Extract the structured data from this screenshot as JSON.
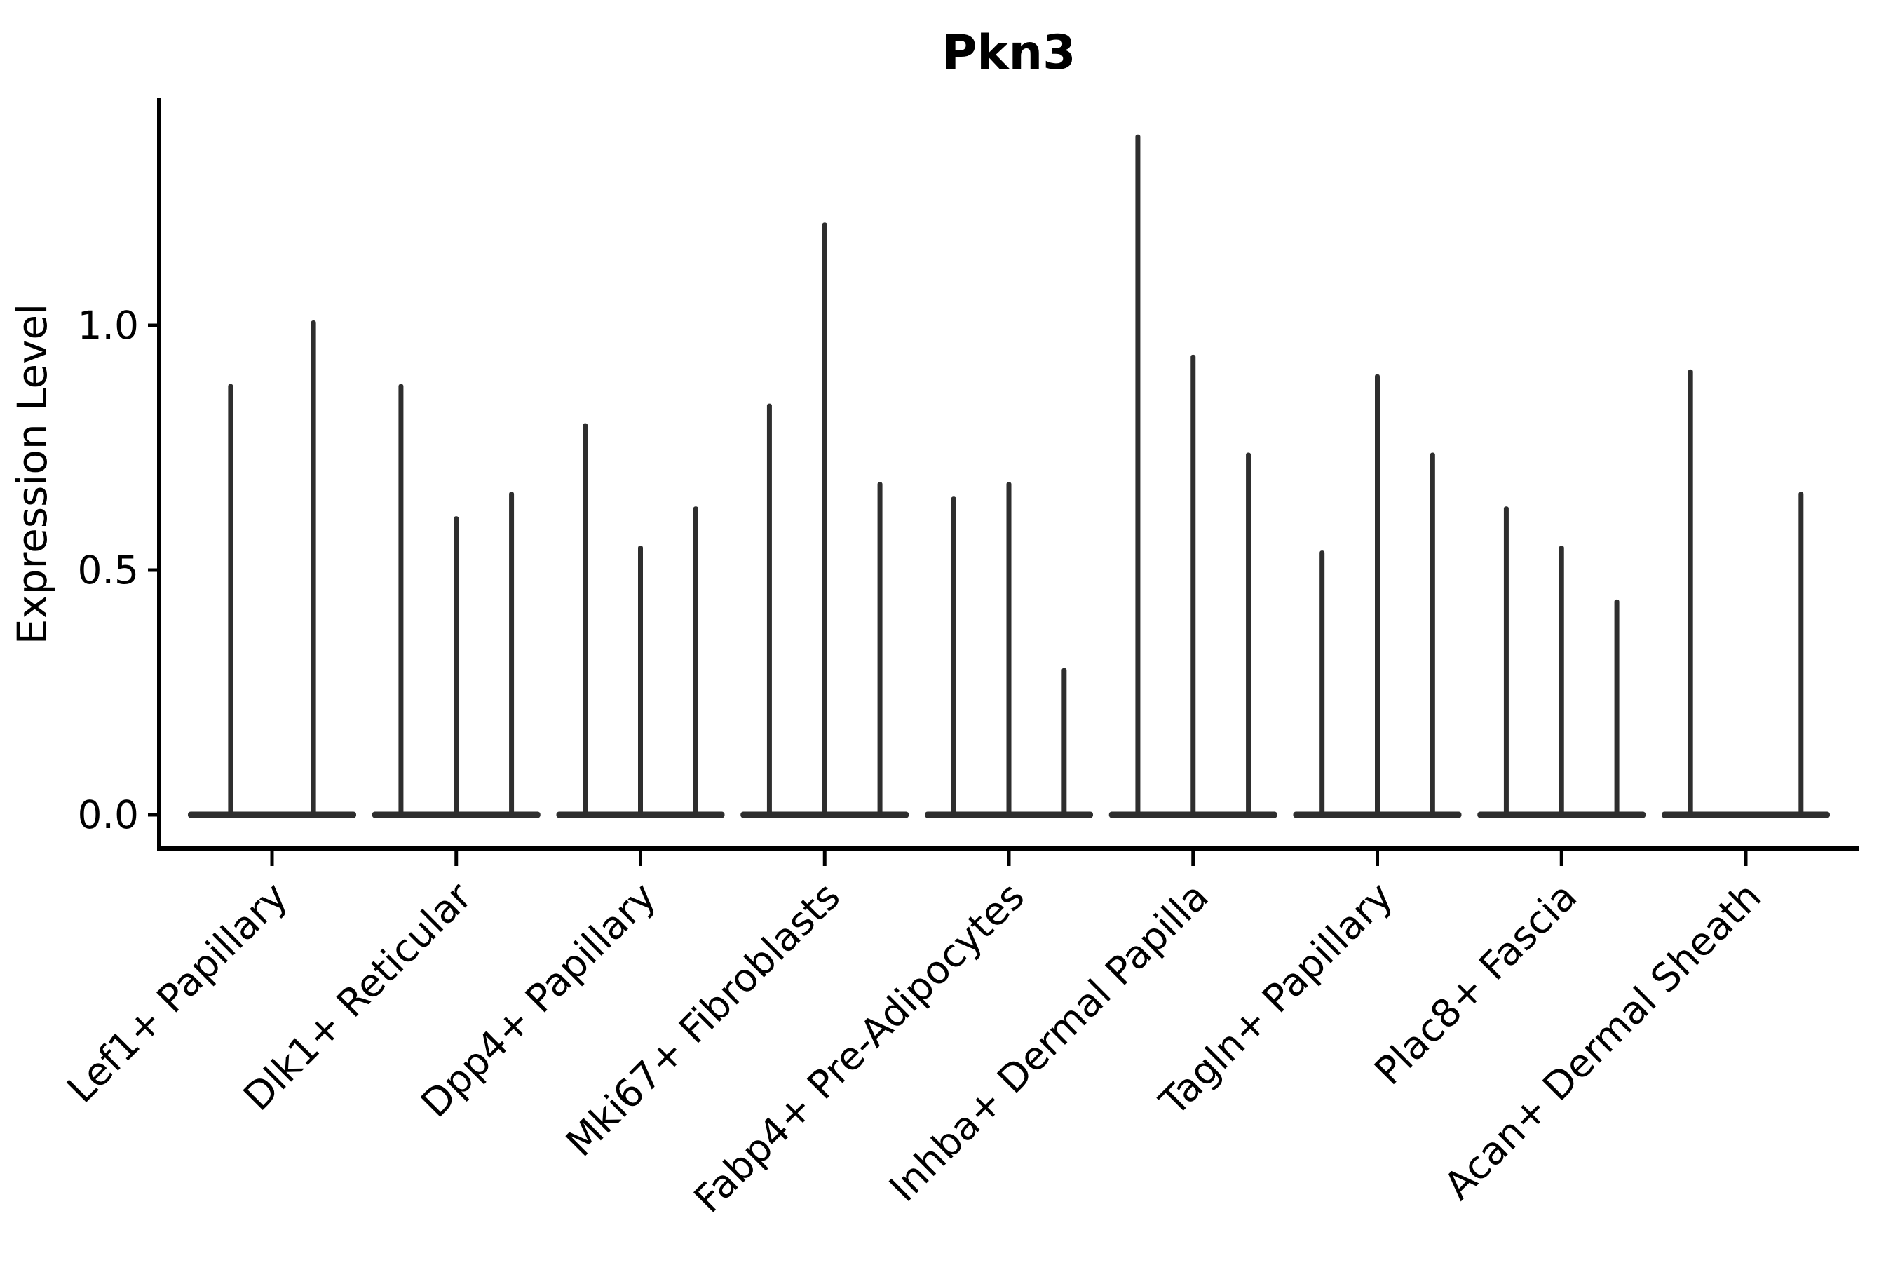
{
  "figure": {
    "title": "Pkn3",
    "background": "#ffffff",
    "colors": {
      "violin": "#2e2e2e",
      "axis": "#000000",
      "text": "#000000"
    }
  },
  "chart_data": {
    "type": "violin",
    "title": "Pkn3",
    "xlabel": "",
    "ylabel": "Expression Level",
    "ylim": [
      -0.07,
      1.46
    ],
    "yticks": [
      0.0,
      0.5,
      1.0
    ],
    "ytick_labels": [
      "0.0",
      "0.5",
      "1.0"
    ],
    "grid": false,
    "legend": "none",
    "categories": [
      "Lef1+ Papillary",
      "Dlk1+ Reticular",
      "Dpp4+ Papillary",
      "Mki67+ Fibroblasts",
      "Fabp4+ Pre-Adipocytes",
      "Inhba+ Dermal Papilla",
      "Tagln+ Papillary",
      "Plac8+ Fascia",
      "Acan+ Dermal Sheath"
    ],
    "violins": [
      {
        "category": "Lef1+ Papillary",
        "spike_maxima": [
          0.88,
          1.01
        ]
      },
      {
        "category": "Dlk1+ Reticular",
        "spike_maxima": [
          0.88,
          0.61,
          0.66
        ]
      },
      {
        "category": "Dpp4+ Papillary",
        "spike_maxima": [
          0.8,
          0.55,
          0.63
        ]
      },
      {
        "category": "Mki67+ Fibroblasts",
        "spike_maxima": [
          0.84,
          1.21,
          0.68
        ]
      },
      {
        "category": "Fabp4+ Pre-Adipocytes",
        "spike_maxima": [
          0.65,
          0.68,
          0.3
        ]
      },
      {
        "category": "Inhba+ Dermal Papilla",
        "spike_maxima": [
          1.39,
          0.94,
          0.74
        ]
      },
      {
        "category": "Tagln+ Papillary",
        "spike_maxima": [
          0.54,
          0.9,
          0.74
        ]
      },
      {
        "category": "Plac8+ Fascia",
        "spike_maxima": [
          0.63,
          0.55,
          0.44
        ]
      },
      {
        "category": "Acan+ Dermal Sheath",
        "spike_maxima": [
          0.91,
          0.0,
          0.66
        ]
      }
    ],
    "baseline_value": 0.0
  }
}
